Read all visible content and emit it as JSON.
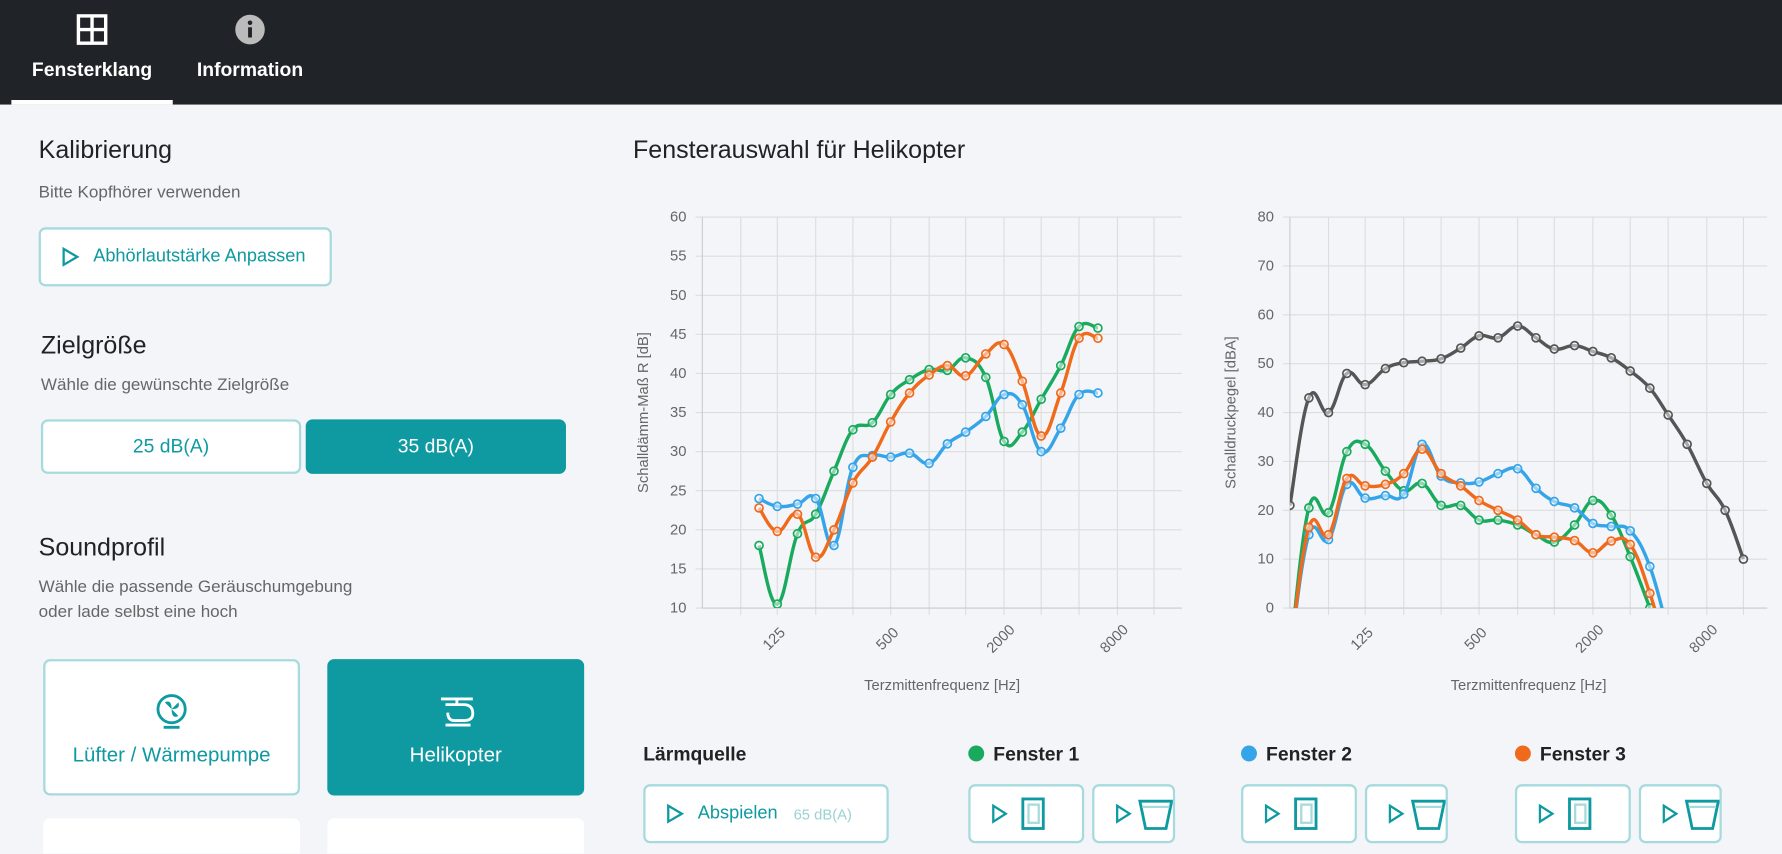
{
  "nav": {
    "tabs": [
      "Fensterklang",
      "Information"
    ]
  },
  "calibration": {
    "title": "Kalibrierung",
    "hint": "Bitte Kopfhörer verwenden",
    "button": "Abhörlautstärke Anpassen"
  },
  "target": {
    "title": "Zielgröße",
    "hint": "Wähle die gewünschte Zielgröße",
    "options": [
      "25 dB(A)",
      "35 dB(A)"
    ]
  },
  "profile": {
    "title": "Soundprofil",
    "hint_lines": [
      "Wähle die passende Geräuschumgebung",
      "oder lade selbst eine hoch"
    ],
    "cards": [
      "Lüfter / Wärmepumpe",
      "Helikopter"
    ]
  },
  "charts_title": "Fensterauswahl für Helikopter",
  "controls": {
    "source_button": "Abspielen",
    "source_level": "65 dB(A)"
  },
  "chart_data": [
    {
      "type": "line",
      "xlabel": "Terzmittenfrequenz [Hz]",
      "ylabel": "Schalldämm-Maß R [dB]",
      "log_x": true,
      "grid": true,
      "x": [
        100,
        125,
        160,
        200,
        250,
        315,
        400,
        500,
        630,
        800,
        1000,
        1250,
        1600,
        2000,
        2500,
        3150,
        4000,
        5000,
        6300
      ],
      "xlim": [
        50,
        17600
      ],
      "xticks": [
        125,
        500,
        2000,
        8000
      ],
      "xgrid_minor": [
        80,
        200,
        315,
        800,
        1250,
        3150,
        5000,
        12500
      ],
      "ylim": [
        10,
        60
      ],
      "yticks": [
        10,
        15,
        20,
        25,
        30,
        35,
        40,
        45,
        50,
        55,
        60
      ],
      "series": [
        {
          "name": "Fenster 1",
          "color": "#1aaa5e",
          "values": [
            18,
            10.5,
            19.5,
            22,
            27.5,
            32.8,
            33.7,
            37.3,
            39.2,
            40.5,
            40.4,
            42,
            39.5,
            31.3,
            32.5,
            36.7,
            41,
            46,
            45.8
          ]
        },
        {
          "name": "Fenster 2",
          "color": "#35a4e8",
          "values": [
            24,
            23,
            23.3,
            24,
            18,
            28,
            29.5,
            29.3,
            29.8,
            28.5,
            31,
            32.5,
            34.5,
            37.3,
            36,
            30,
            33,
            37.3,
            37.5
          ]
        },
        {
          "name": "Fenster 3",
          "color": "#f06a1c",
          "values": [
            22.8,
            19.8,
            22,
            16.5,
            20,
            26,
            29.3,
            33.8,
            37.5,
            39.8,
            41,
            39.7,
            42.5,
            43.7,
            39,
            32,
            37.5,
            44.5,
            44.5
          ]
        }
      ]
    },
    {
      "type": "line",
      "xlabel": "Terzmittenfrequenz [Hz]",
      "ylabel": "Schalldruckpegel [dBA]",
      "log_x": true,
      "grid": true,
      "x": [
        50,
        63,
        80,
        100,
        125,
        160,
        200,
        250,
        315,
        400,
        500,
        630,
        800,
        1000,
        1250,
        1600,
        2000,
        2500,
        3150,
        4000,
        5000,
        6300,
        8000,
        10000,
        12500
      ],
      "xlim": [
        50,
        16700
      ],
      "xticks": [
        125,
        500,
        2000,
        8000
      ],
      "xgrid_minor": [
        80,
        200,
        315,
        800,
        1250,
        3150,
        5000,
        12500
      ],
      "ylim": [
        0,
        80
      ],
      "yticks": [
        0,
        10,
        20,
        30,
        40,
        50,
        60,
        70,
        80
      ],
      "series": [
        {
          "name": "Lärmquelle",
          "color": "#555555",
          "values": [
            21,
            43,
            40,
            48,
            45.7,
            49,
            50.2,
            50.5,
            51,
            53.2,
            55.7,
            55.3,
            57.7,
            55.3,
            53,
            53.7,
            52.5,
            51.2,
            48.5,
            45,
            39.5,
            33.5,
            25.5,
            20,
            10
          ]
        },
        {
          "color": "#1aaa5e",
          "values": [
            -10,
            20.5,
            19.5,
            32,
            33.5,
            28,
            24,
            25.5,
            21,
            21,
            18,
            18,
            17,
            15,
            13.5,
            17,
            22,
            19,
            10.5,
            0,
            null,
            null,
            null,
            null,
            null
          ]
        },
        {
          "color": "#35a4e8",
          "values": [
            -10,
            15,
            14,
            25.3,
            22.5,
            23,
            23.3,
            33.5,
            27,
            25.6,
            25.8,
            27.5,
            28.5,
            24.5,
            21.8,
            20.5,
            17.3,
            16.7,
            15.8,
            8.5,
            -5,
            null,
            null,
            null,
            null
          ]
        },
        {
          "color": "#f06a1c",
          "values": [
            -10,
            16.5,
            15,
            26.5,
            25,
            25.3,
            27.5,
            32.5,
            27.5,
            25,
            22,
            20,
            18,
            15,
            14.5,
            13.8,
            11.3,
            13.7,
            13,
            3,
            -10,
            null,
            null,
            null,
            null
          ]
        }
      ]
    }
  ]
}
